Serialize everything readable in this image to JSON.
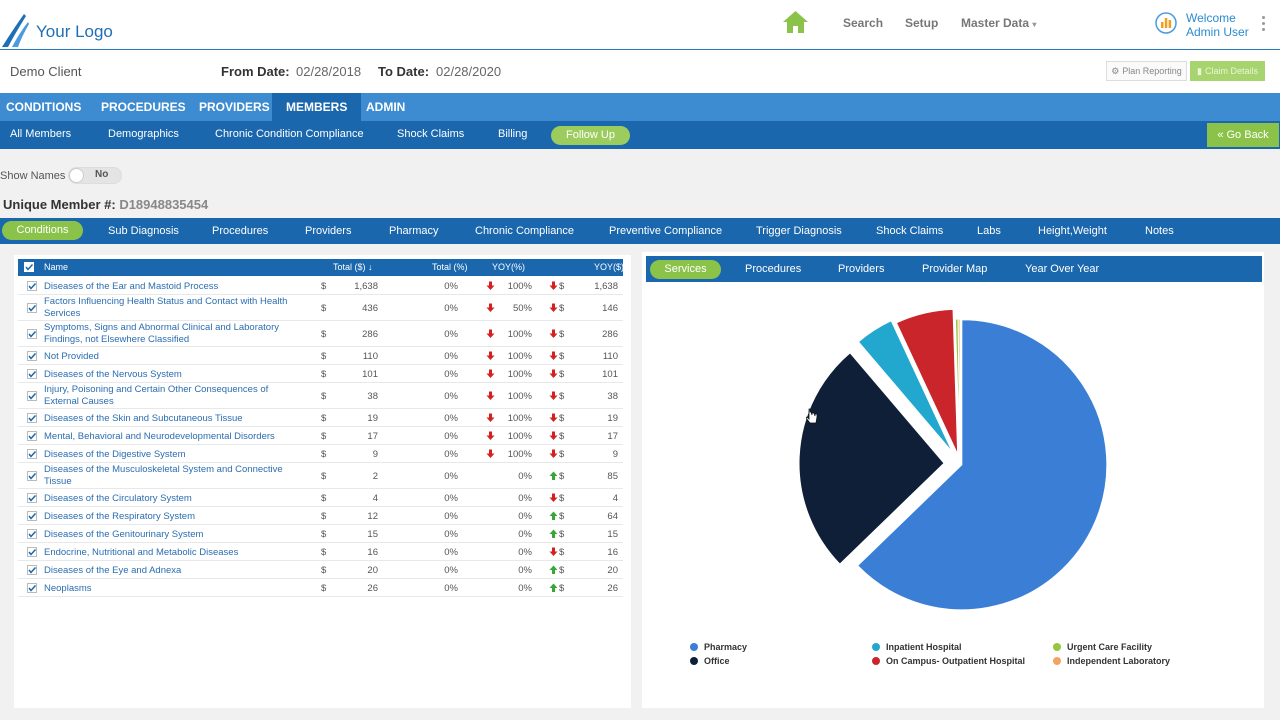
{
  "header": {
    "logo_text": "Your Logo",
    "nav_links": [
      "Search",
      "Setup",
      "Master Data"
    ],
    "welcome": "Welcome",
    "user": "Admin User"
  },
  "client_bar": {
    "client": "Demo Client",
    "from_label": "From Date:",
    "from_value": "02/28/2018",
    "to_label": "To Date:",
    "to_value": "02/28/2020",
    "plan_reporting": "Plan Reporting",
    "claim_details": "Claim Details"
  },
  "main_nav": [
    "CONDITIONS",
    "PROCEDURES",
    "PROVIDERS",
    "MEMBERS",
    "ADMIN"
  ],
  "main_nav_active": "MEMBERS",
  "sub_nav": [
    "All Members",
    "Demographics",
    "Chronic Condition Compliance",
    "Shock Claims",
    "Billing",
    "Follow Up"
  ],
  "go_back": "Go Back",
  "show_names_label": "Show Names",
  "show_names_value": "No",
  "unique_member_label": "Unique Member #:",
  "unique_member_id": "D18948835454",
  "detail_nav": [
    "Conditions",
    "Sub Diagnosis",
    "Procedures",
    "Providers",
    "Pharmacy",
    "Chronic Compliance",
    "Preventive Compliance",
    "Trigger Diagnosis",
    "Shock Claims",
    "Labs",
    "Height,Weight",
    "Notes"
  ],
  "table": {
    "headers": [
      "Name",
      "Total ($) ↓",
      "Total (%)",
      "YOY(%)",
      "YOY($)"
    ],
    "rows": [
      {
        "name": "Diseases of the Ear and Mastoid Process",
        "cur": "$",
        "total": "1,638",
        "pct": "0%",
        "yoy_pct": "100%",
        "yoy_pct_dir": "down",
        "yoy_dir": "down",
        "yoy_cur": "$",
        "yoy": "1,638"
      },
      {
        "name": "Factors Influencing Health Status and Contact with Health Services",
        "cur": "$",
        "total": "436",
        "pct": "0%",
        "yoy_pct": "50%",
        "yoy_pct_dir": "down",
        "yoy_dir": "down",
        "yoy_cur": "$",
        "yoy": "146"
      },
      {
        "name": "Symptoms, Signs and Abnormal Clinical and Laboratory Findings, not Elsewhere Classified",
        "cur": "$",
        "total": "286",
        "pct": "0%",
        "yoy_pct": "100%",
        "yoy_pct_dir": "down",
        "yoy_dir": "down",
        "yoy_cur": "$",
        "yoy": "286"
      },
      {
        "name": "Not Provided",
        "cur": "$",
        "total": "110",
        "pct": "0%",
        "yoy_pct": "100%",
        "yoy_pct_dir": "down",
        "yoy_dir": "down",
        "yoy_cur": "$",
        "yoy": "110"
      },
      {
        "name": "Diseases of the Nervous System",
        "cur": "$",
        "total": "101",
        "pct": "0%",
        "yoy_pct": "100%",
        "yoy_pct_dir": "down",
        "yoy_dir": "down",
        "yoy_cur": "$",
        "yoy": "101"
      },
      {
        "name": "Injury, Poisoning and Certain Other Consequences of External Causes",
        "cur": "$",
        "total": "38",
        "pct": "0%",
        "yoy_pct": "100%",
        "yoy_pct_dir": "down",
        "yoy_dir": "down",
        "yoy_cur": "$",
        "yoy": "38"
      },
      {
        "name": "Diseases of the Skin and Subcutaneous Tissue",
        "cur": "$",
        "total": "19",
        "pct": "0%",
        "yoy_pct": "100%",
        "yoy_pct_dir": "down",
        "yoy_dir": "down",
        "yoy_cur": "$",
        "yoy": "19"
      },
      {
        "name": "Mental, Behavioral and Neurodevelopmental Disorders",
        "cur": "$",
        "total": "17",
        "pct": "0%",
        "yoy_pct": "100%",
        "yoy_pct_dir": "down",
        "yoy_dir": "down",
        "yoy_cur": "$",
        "yoy": "17"
      },
      {
        "name": "Diseases of the Digestive System",
        "cur": "$",
        "total": "9",
        "pct": "0%",
        "yoy_pct": "100%",
        "yoy_pct_dir": "down",
        "yoy_dir": "down",
        "yoy_cur": "$",
        "yoy": "9"
      },
      {
        "name": "Diseases of the Musculoskeletal System and Connective Tissue",
        "cur": "$",
        "total": "2",
        "pct": "0%",
        "yoy_pct": "0%",
        "yoy_pct_dir": "none",
        "yoy_dir": "up",
        "yoy_cur": "$",
        "yoy": "85"
      },
      {
        "name": "Diseases of the Circulatory System",
        "cur": "$",
        "total": "4",
        "pct": "0%",
        "yoy_pct": "0%",
        "yoy_pct_dir": "none",
        "yoy_dir": "down",
        "yoy_cur": "$",
        "yoy": "4"
      },
      {
        "name": "Diseases of the Respiratory System",
        "cur": "$",
        "total": "12",
        "pct": "0%",
        "yoy_pct": "0%",
        "yoy_pct_dir": "none",
        "yoy_dir": "up",
        "yoy_cur": "$",
        "yoy": "64"
      },
      {
        "name": "Diseases of the Genitourinary System",
        "cur": "$",
        "total": "15",
        "pct": "0%",
        "yoy_pct": "0%",
        "yoy_pct_dir": "none",
        "yoy_dir": "up",
        "yoy_cur": "$",
        "yoy": "15"
      },
      {
        "name": "Endocrine, Nutritional and Metabolic Diseases",
        "cur": "$",
        "total": "16",
        "pct": "0%",
        "yoy_pct": "0%",
        "yoy_pct_dir": "none",
        "yoy_dir": "down",
        "yoy_cur": "$",
        "yoy": "16"
      },
      {
        "name": "Diseases of the Eye and Adnexa",
        "cur": "$",
        "total": "20",
        "pct": "0%",
        "yoy_pct": "0%",
        "yoy_pct_dir": "none",
        "yoy_dir": "up",
        "yoy_cur": "$",
        "yoy": "20"
      },
      {
        "name": "Neoplasms",
        "cur": "$",
        "total": "26",
        "pct": "0%",
        "yoy_pct": "0%",
        "yoy_pct_dir": "none",
        "yoy_dir": "up",
        "yoy_cur": "$",
        "yoy": "26"
      }
    ]
  },
  "chart_nav": [
    "Services",
    "Procedures",
    "Providers",
    "Provider Map",
    "Year Over Year"
  ],
  "chart_data": {
    "type": "pie",
    "title": "",
    "series": [
      {
        "name": "Pharmacy",
        "value": 61.5,
        "color": "#3a7fd5"
      },
      {
        "name": "Office",
        "value": 25.5,
        "color": "#0f1f38"
      },
      {
        "name": "Inpatient Hospital",
        "value": 4.2,
        "color": "#22a8cf"
      },
      {
        "name": "On Campus- Outpatient Hospital",
        "value": 6.3,
        "color": "#c9252b"
      },
      {
        "name": "Urgent Care Facility",
        "value": 0.3,
        "color": "#93c83e"
      },
      {
        "name": "Independent Laboratory",
        "value": 0.2,
        "color": "#f4a460"
      }
    ],
    "legend_position": "bottom"
  }
}
